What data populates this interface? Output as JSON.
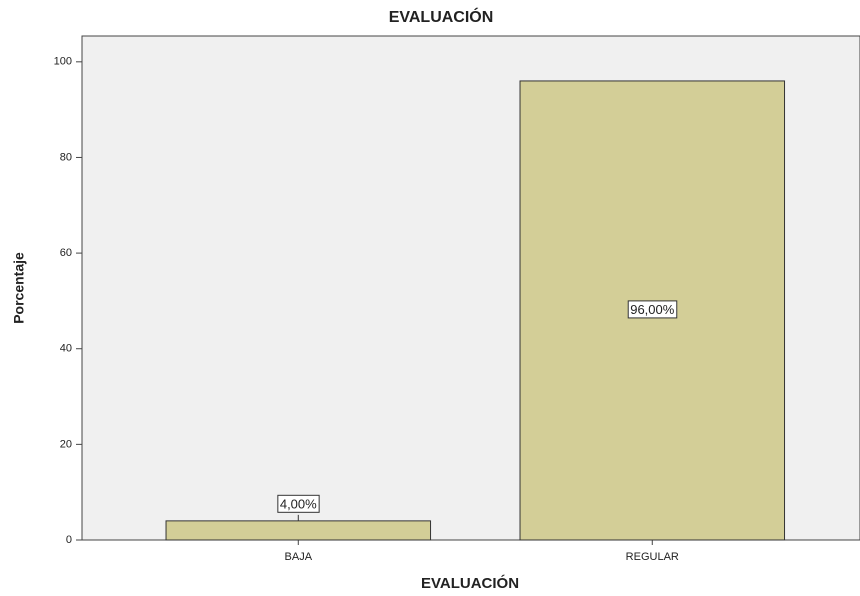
{
  "chart_data": {
    "type": "bar",
    "title": "EVALUACIÓN",
    "x_label": "EVALUACIÓN",
    "y_label": "Porcentaje",
    "categories": [
      "BAJA",
      "REGULAR"
    ],
    "values": [
      4,
      96
    ],
    "value_labels": [
      "4,00%",
      "96,00%"
    ],
    "color": "#d3ce97",
    "ylim": [
      0,
      105.4
    ],
    "yticks": [
      0,
      20,
      40,
      60,
      80,
      100
    ],
    "grid": false
  }
}
